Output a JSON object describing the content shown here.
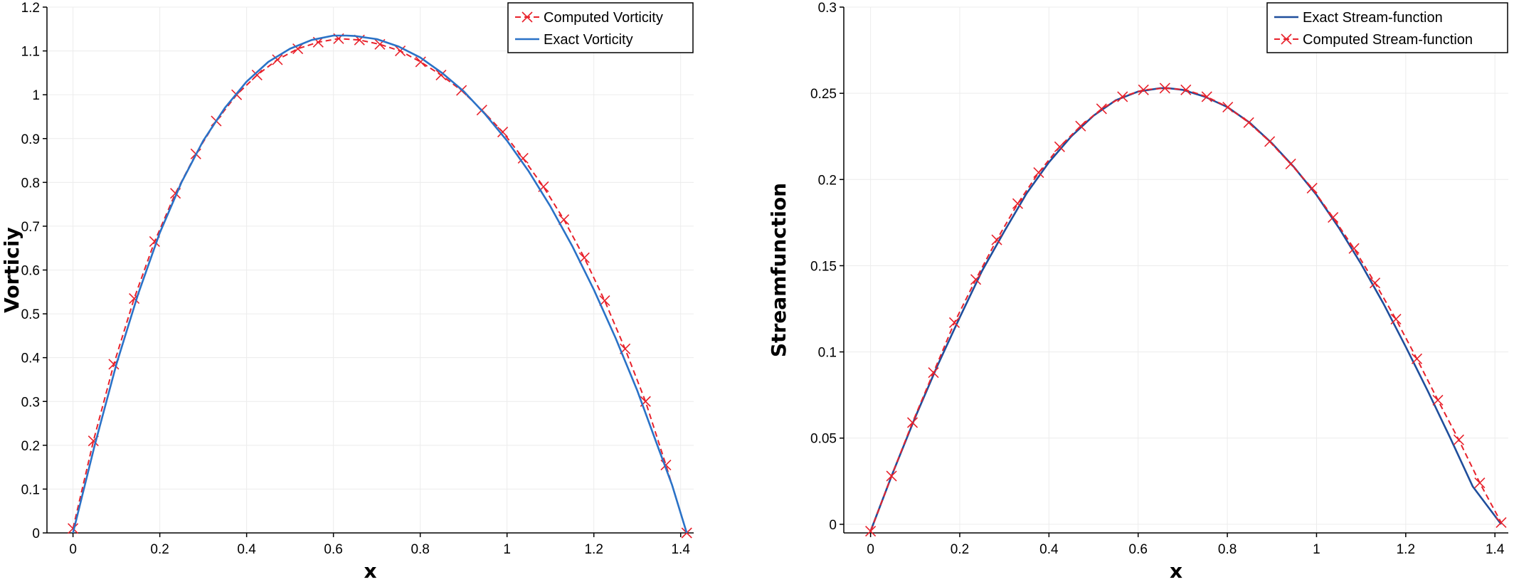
{
  "chart_data": [
    {
      "type": "line",
      "title": "",
      "xlabel": "x",
      "ylabel": "Vorticiy",
      "xlim": [
        -0.06,
        1.43
      ],
      "ylim": [
        0,
        1.2
      ],
      "xticks": [
        "0",
        "0.2",
        "0.4",
        "0.6",
        "0.8",
        "1",
        "1.2",
        "1.4"
      ],
      "yticks": [
        "0",
        "0.1",
        "0.2",
        "0.3",
        "0.4",
        "0.5",
        "0.6",
        "0.7",
        "0.8",
        "0.9",
        "1",
        "1.1",
        "1.2"
      ],
      "grid": true,
      "legend": "top-right",
      "series": [
        {
          "name": "Computed Vorticity",
          "style": "dashed-x",
          "color": "#e8212b",
          "x": [
            0,
            0.047,
            0.094,
            0.141,
            0.188,
            0.236,
            0.283,
            0.33,
            0.377,
            0.424,
            0.471,
            0.518,
            0.565,
            0.612,
            0.66,
            0.707,
            0.754,
            0.801,
            0.848,
            0.895,
            0.942,
            0.99,
            1.037,
            1.084,
            1.131,
            1.178,
            1.225,
            1.272,
            1.319,
            1.366,
            1.414
          ],
          "y": [
            0.01,
            0.21,
            0.385,
            0.535,
            0.665,
            0.775,
            0.865,
            0.94,
            1.0,
            1.045,
            1.08,
            1.105,
            1.12,
            1.128,
            1.125,
            1.115,
            1.1,
            1.075,
            1.045,
            1.01,
            0.965,
            0.915,
            0.855,
            0.79,
            0.715,
            0.628,
            0.53,
            0.42,
            0.3,
            0.155,
            0.0
          ]
        },
        {
          "name": "Exact Vorticity",
          "style": "solid",
          "color": "#2a72c7",
          "x": [
            0,
            0.05,
            0.1,
            0.15,
            0.2,
            0.25,
            0.3,
            0.35,
            0.4,
            0.45,
            0.5,
            0.55,
            0.6,
            0.63,
            0.65,
            0.7,
            0.75,
            0.8,
            0.85,
            0.9,
            0.95,
            1.0,
            1.05,
            1.1,
            1.15,
            1.2,
            1.25,
            1.3,
            1.35,
            1.38,
            1.414
          ],
          "y": [
            0.0,
            0.2,
            0.385,
            0.545,
            0.685,
            0.8,
            0.895,
            0.97,
            1.03,
            1.075,
            1.105,
            1.125,
            1.135,
            1.135,
            1.134,
            1.127,
            1.11,
            1.085,
            1.05,
            1.008,
            0.955,
            0.895,
            0.825,
            0.745,
            0.655,
            0.555,
            0.445,
            0.325,
            0.19,
            0.11,
            0.0
          ]
        }
      ]
    },
    {
      "type": "line",
      "title": "",
      "xlabel": "x",
      "ylabel": "Streamfunction",
      "xlim": [
        -0.06,
        1.43
      ],
      "ylim": [
        -0.005,
        0.3
      ],
      "xticks": [
        "0",
        "0.2",
        "0.4",
        "0.6",
        "0.8",
        "1",
        "1.2",
        "1.4"
      ],
      "yticks": [
        "0",
        "0.05",
        "0.1",
        "0.15",
        "0.2",
        "0.25",
        "0.3"
      ],
      "grid": true,
      "legend": "top-right",
      "series": [
        {
          "name": "Exact Stream-function",
          "style": "solid",
          "color": "#1f4e9c",
          "x": [
            0,
            0.05,
            0.1,
            0.15,
            0.2,
            0.25,
            0.3,
            0.35,
            0.4,
            0.45,
            0.5,
            0.55,
            0.6,
            0.65,
            0.667,
            0.7,
            0.75,
            0.8,
            0.85,
            0.9,
            0.95,
            1.0,
            1.05,
            1.1,
            1.15,
            1.2,
            1.25,
            1.3,
            1.35,
            1.414
          ],
          "y": [
            -0.004,
            0.03,
            0.062,
            0.092,
            0.12,
            0.147,
            0.17,
            0.192,
            0.21,
            0.225,
            0.237,
            0.246,
            0.251,
            0.253,
            0.253,
            0.252,
            0.248,
            0.242,
            0.233,
            0.221,
            0.207,
            0.191,
            0.172,
            0.151,
            0.128,
            0.103,
            0.077,
            0.05,
            0.022,
            0.0
          ]
        },
        {
          "name": "Computed Stream-function",
          "style": "dashed-x",
          "color": "#e8212b",
          "x": [
            0,
            0.047,
            0.094,
            0.141,
            0.188,
            0.236,
            0.283,
            0.33,
            0.377,
            0.424,
            0.471,
            0.518,
            0.565,
            0.612,
            0.66,
            0.707,
            0.754,
            0.801,
            0.848,
            0.895,
            0.942,
            0.99,
            1.037,
            1.084,
            1.131,
            1.178,
            1.225,
            1.272,
            1.319,
            1.366,
            1.414
          ],
          "y": [
            -0.004,
            0.028,
            0.059,
            0.088,
            0.117,
            0.142,
            0.165,
            0.186,
            0.204,
            0.219,
            0.231,
            0.241,
            0.248,
            0.252,
            0.253,
            0.252,
            0.248,
            0.242,
            0.233,
            0.222,
            0.209,
            0.195,
            0.178,
            0.16,
            0.14,
            0.119,
            0.096,
            0.072,
            0.049,
            0.024,
            0.001
          ]
        }
      ]
    }
  ]
}
